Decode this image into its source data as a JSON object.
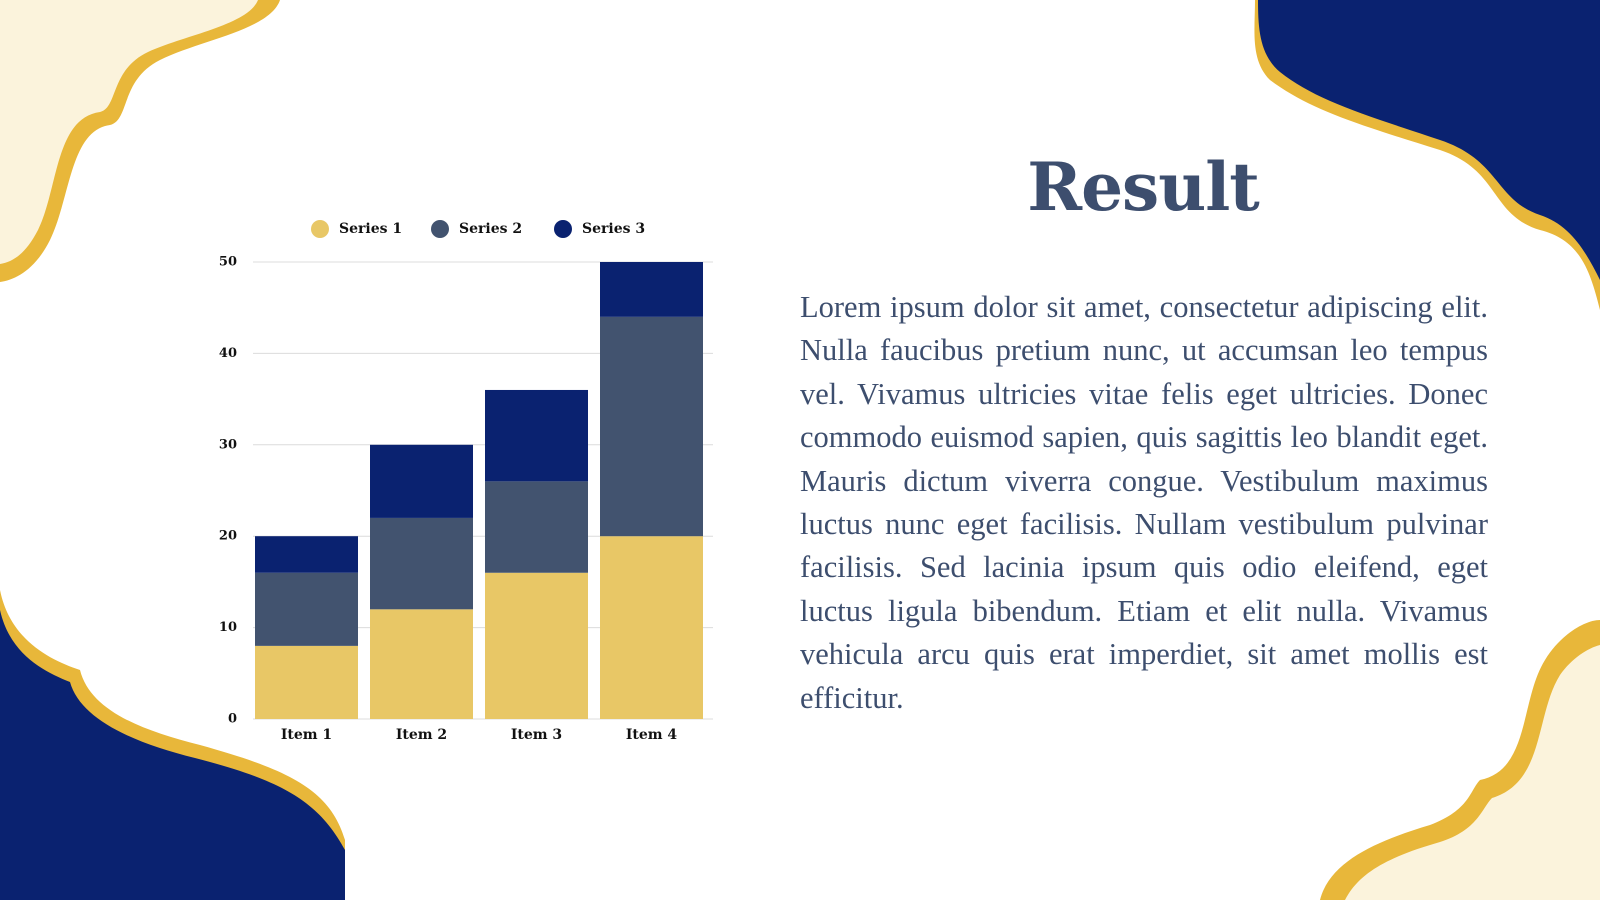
{
  "chart_data": {
    "type": "bar",
    "stacked": true,
    "categories": [
      "Item 1",
      "Item 2",
      "Item 3",
      "Item 4"
    ],
    "series": [
      {
        "name": "Series 1",
        "color": "#e8c766",
        "values": [
          8,
          12,
          16,
          20
        ]
      },
      {
        "name": "Series 2",
        "color": "#42536f",
        "values": [
          8,
          10,
          10,
          24
        ]
      },
      {
        "name": "Series 3",
        "color": "#0a2270",
        "values": [
          4,
          8,
          10,
          6
        ]
      }
    ],
    "ylim": [
      0,
      50
    ],
    "yticks": [
      0,
      10,
      20,
      30,
      40,
      50
    ],
    "grid": true,
    "legend": "top"
  },
  "slide": {
    "title": "Result",
    "body": "Lorem ipsum dolor sit amet, consectetur adipiscing elit. Nulla faucibus pretium nunc, ut accumsan leo tempus vel. Vivamus ultricies vitae felis eget ultricies. Donec commodo euismod sapien, quis sagittis leo blandit eget. Mauris dictum viverra congue. Vestibulum maximus luctus nunc eget facilisis. Nullam vestibulum pulvinar facilisis. Sed lacinia ipsum quis odio eleifend, eget luctus ligula bibendum. Etiam et elit nulla. Vivamus vehicula arcu quis erat imperdiet, sit amet mollis est efficitur."
  }
}
